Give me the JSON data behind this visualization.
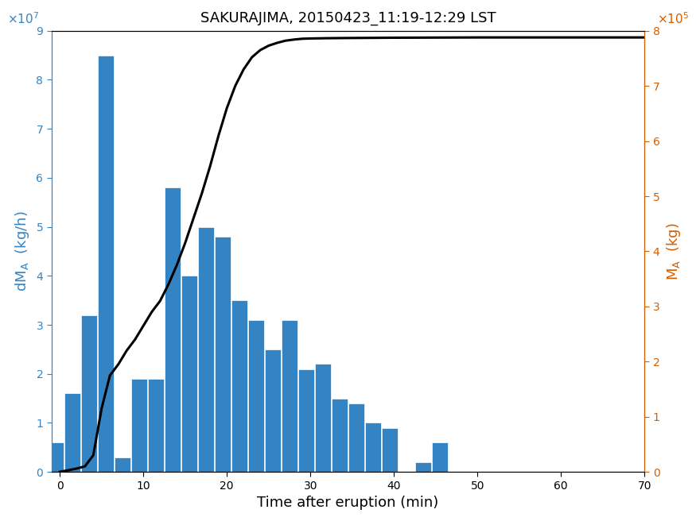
{
  "title": "SAKURAJIMA, 20150423_11:19-12:29 LST",
  "xlabel": "Time after eruption (min)",
  "bar_color": "#3484c4",
  "line_color": "#000000",
  "xlim": [
    -1,
    70
  ],
  "ylim_left": [
    0,
    90000000.0
  ],
  "ylim_right": [
    0,
    800000.0
  ],
  "bar_centers": [
    -0.5,
    1.5,
    3.5,
    5.5,
    7.5,
    9.5,
    11.5,
    13.5,
    15.5,
    17.5,
    19.5,
    21.5,
    23.5,
    25.5,
    27.5,
    29.5,
    31.5,
    33.5,
    35.5,
    37.5,
    39.5,
    41.5,
    43.5,
    45.5,
    47.5
  ],
  "bar_heights": [
    6000000.0,
    16000000.0,
    32000000.0,
    85000000.0,
    3000000.0,
    19000000.0,
    19000000.0,
    58000000.0,
    40000000.0,
    50000000.0,
    48000000.0,
    35000000.0,
    31000000.0,
    25000000.0,
    31000000.0,
    21000000.0,
    22000000.0,
    15000000.0,
    14000000.0,
    10000000.0,
    9000000.0,
    0,
    2000000.0,
    6000000.0,
    0
  ],
  "bar_width": 1.9,
  "cum_x": [
    0,
    1,
    2,
    3,
    4,
    5,
    6,
    7,
    8,
    9,
    10,
    11,
    12,
    13,
    14,
    15,
    16,
    17,
    18,
    19,
    20,
    21,
    22,
    23,
    24,
    25,
    26,
    27,
    28,
    29,
    30,
    32,
    34,
    36,
    38,
    40,
    42,
    44,
    46,
    48,
    50,
    55,
    60,
    65,
    70
  ],
  "cum_y": [
    0,
    3000.0,
    6000.0,
    10000.0,
    30000.0,
    115000.0,
    175000.0,
    195000.0,
    220000.0,
    240000.0,
    265000.0,
    290000.0,
    310000.0,
    340000.0,
    375000.0,
    415000.0,
    460000.0,
    505000.0,
    555000.0,
    610000.0,
    660000.0,
    700000.0,
    730000.0,
    752000.0,
    765000.0,
    773000.0,
    778000.0,
    782000.0,
    784000.0,
    785500.0,
    786000.0,
    786500.0,
    786800.0,
    787000.0,
    787200.0,
    787400.0,
    787500.0,
    787600.0,
    787700.0,
    787800.0,
    787900.0,
    787900.0,
    787900.0,
    787900.0,
    787900.0
  ]
}
